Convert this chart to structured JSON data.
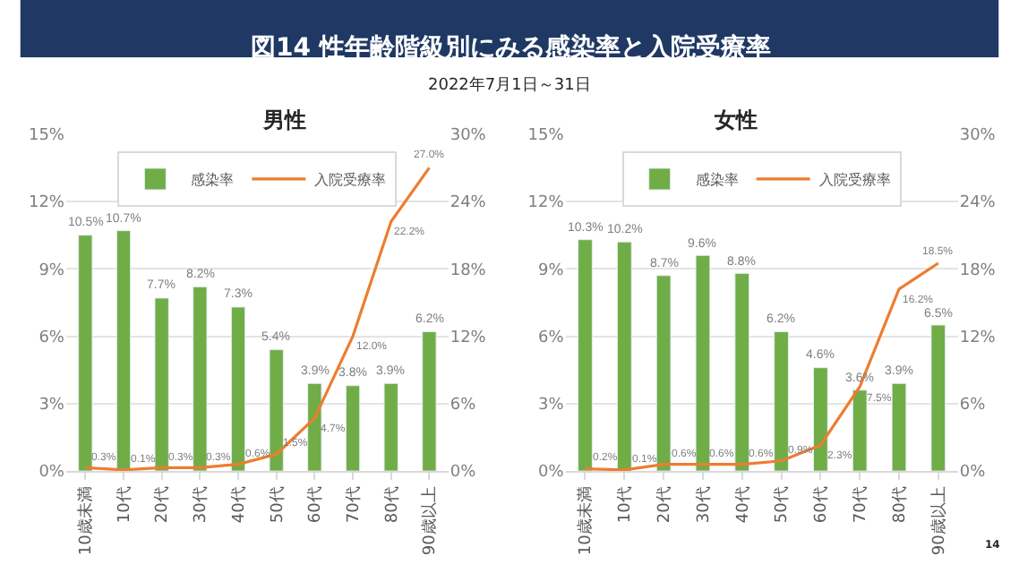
{
  "chart_data": [
    {
      "type": "bar",
      "title": "男性",
      "categories": [
        "10歳未満",
        "10代",
        "20代",
        "30代",
        "40代",
        "50代",
        "60代",
        "70代",
        "80代",
        "90歳以上"
      ],
      "series": [
        {
          "name": "感染率",
          "color": "#70ad47",
          "values": [
            10.5,
            10.7,
            7.7,
            8.2,
            7.3,
            5.4,
            3.9,
            3.8,
            3.9,
            6.2
          ],
          "value_labels": [
            "10.5%",
            "10.7%",
            "7.7%",
            "8.2%",
            "7.3%",
            "5.4%",
            "3.9%",
            "3.8%",
            "3.9%",
            "6.2%"
          ]
        },
        {
          "name": "入院受療率",
          "type": "line",
          "axis": "y2",
          "color": "#ed7d31",
          "values": [
            0.3,
            0.1,
            0.3,
            0.3,
            0.6,
            1.5,
            4.7,
            12.0,
            22.2,
            27.0
          ],
          "value_labels": [
            "0.3%",
            "0.1%",
            "0.3%",
            "0.3%",
            "0.6%",
            "1.5%",
            "4.7%",
            "12.0%",
            "22.2%",
            "27.0%"
          ]
        }
      ],
      "ylim": [
        0,
        15
      ],
      "yticks": [
        {
          "value": 0,
          "label": "0%"
        },
        {
          "value": 3,
          "label": "3%"
        },
        {
          "value": 6,
          "label": "6%"
        },
        {
          "value": 9,
          "label": "9%"
        },
        {
          "value": 12,
          "label": "12%"
        },
        {
          "value": 15,
          "label": "15%"
        }
      ],
      "y2lim": [
        0,
        30
      ],
      "y2ticks": [
        {
          "value": 0,
          "label": "0%"
        },
        {
          "value": 6,
          "label": "6%"
        },
        {
          "value": 12,
          "label": "12%"
        },
        {
          "value": 18,
          "label": "18%"
        },
        {
          "value": 24,
          "label": "24%"
        },
        {
          "value": 30,
          "label": "30%"
        }
      ],
      "grid": "y",
      "legend": "top",
      "marker": "none",
      "line_style": "solid",
      "annotations": [
        "図14 性年齢階級別にみる感染率と入院受療率",
        "2022年7月1日～31日"
      ]
    },
    {
      "type": "bar",
      "title": "女性",
      "categories": [
        "10歳未満",
        "10代",
        "20代",
        "30代",
        "40代",
        "50代",
        "60代",
        "70代",
        "80代",
        "90歳以上"
      ],
      "series": [
        {
          "name": "感染率",
          "color": "#70ad47",
          "values": [
            10.3,
            10.2,
            8.7,
            9.6,
            8.8,
            6.2,
            4.6,
            3.6,
            3.9,
            6.5
          ],
          "value_labels": [
            "10.3%",
            "10.2%",
            "8.7%",
            "9.6%",
            "8.8%",
            "6.2%",
            "4.6%",
            "3.6%",
            "3.9%",
            "6.5%"
          ]
        },
        {
          "name": "入院受療率",
          "type": "line",
          "axis": "y2",
          "color": "#ed7d31",
          "values": [
            0.2,
            0.1,
            0.6,
            0.6,
            0.6,
            0.9,
            2.3,
            7.5,
            16.2,
            18.5
          ],
          "value_labels": [
            "0.2%",
            "0.1%",
            "0.6%",
            "0.6%",
            "0.6%",
            "0.9%",
            "2.3%",
            "7.5%",
            "16.2%",
            "18.5%"
          ]
        }
      ],
      "ylim": [
        0,
        15
      ],
      "yticks": [
        {
          "value": 0,
          "label": "0%"
        },
        {
          "value": 3,
          "label": "3%"
        },
        {
          "value": 6,
          "label": "6%"
        },
        {
          "value": 9,
          "label": "9%"
        },
        {
          "value": 12,
          "label": "12%"
        },
        {
          "value": 15,
          "label": "15%"
        }
      ],
      "y2lim": [
        0,
        30
      ],
      "y2ticks": [
        {
          "value": 0,
          "label": "0%"
        },
        {
          "value": 6,
          "label": "6%"
        },
        {
          "value": 12,
          "label": "12%"
        },
        {
          "value": 18,
          "label": "18%"
        },
        {
          "value": 24,
          "label": "24%"
        },
        {
          "value": 30,
          "label": "30%"
        }
      ],
      "grid": "y",
      "legend": "top",
      "marker": "none",
      "line_style": "solid",
      "annotations": [
        "14"
      ]
    }
  ]
}
